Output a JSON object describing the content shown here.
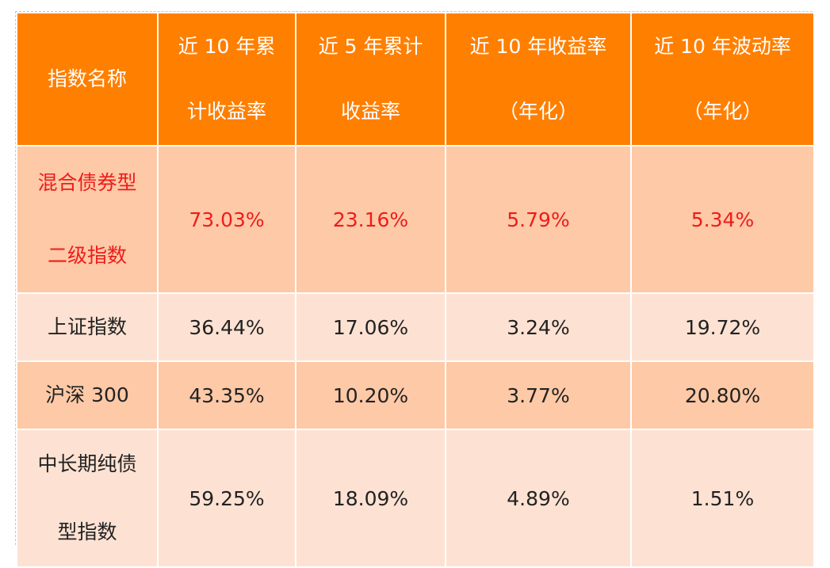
{
  "table": {
    "headers": [
      {
        "lines": [
          "指数名称"
        ]
      },
      {
        "lines": [
          "近 10 年累",
          "计收益率"
        ]
      },
      {
        "lines": [
          "近 5 年累计",
          "收益率"
        ]
      },
      {
        "lines": [
          "近 10 年收益率",
          "（年化）"
        ]
      },
      {
        "lines": [
          "近 10 年波动率",
          "（年化）"
        ]
      }
    ],
    "rows": [
      {
        "name_lines": [
          "混合债券型",
          "二级指数"
        ],
        "values": [
          "73.03%",
          "23.16%",
          "5.79%",
          "5.34%"
        ],
        "highlighted": true
      },
      {
        "name_lines": [
          "上证指数"
        ],
        "values": [
          "36.44%",
          "17.06%",
          "3.24%",
          "19.72%"
        ]
      },
      {
        "name_lines": [
          "沪深 300"
        ],
        "values": [
          "43.35%",
          "10.20%",
          "3.77%",
          "20.80%"
        ]
      },
      {
        "name_lines": [
          "中长期纯债",
          "型指数"
        ],
        "values": [
          "59.25%",
          "18.09%",
          "4.89%",
          "1.51%"
        ]
      }
    ],
    "colors": {
      "header_bg": "#ff7f00",
      "header_text": "#ffffff",
      "row_dark": "#fdc9a6",
      "row_light": "#fde2d3",
      "highlight_text": "#ee1c1c",
      "body_text": "#222222"
    }
  }
}
